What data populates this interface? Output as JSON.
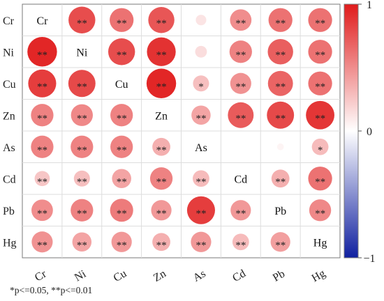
{
  "chart_data": {
    "type": "heatmap",
    "title": "",
    "variables": [
      "Cr",
      "Ni",
      "Cu",
      "Zn",
      "As",
      "Cd",
      "Pb",
      "Hg"
    ],
    "matrix": [
      [
        1.0,
        0.78,
        0.62,
        0.74,
        0.12,
        0.5,
        0.62,
        0.62
      ],
      [
        0.95,
        1.0,
        0.78,
        0.9,
        0.15,
        0.55,
        0.7,
        0.62
      ],
      [
        0.85,
        0.8,
        1.0,
        0.95,
        0.28,
        0.48,
        0.68,
        0.62
      ],
      [
        0.55,
        0.52,
        0.55,
        1.0,
        0.4,
        0.72,
        0.8,
        0.88
      ],
      [
        0.55,
        0.55,
        0.55,
        0.35,
        1.0,
        0.0,
        0.05,
        0.3
      ],
      [
        0.25,
        0.28,
        0.4,
        0.55,
        0.3,
        1.0,
        0.35,
        0.62
      ],
      [
        0.5,
        0.55,
        0.58,
        0.45,
        0.85,
        0.45,
        1.0,
        0.52
      ],
      [
        0.48,
        0.4,
        0.45,
        0.35,
        0.45,
        0.3,
        0.42,
        1.0
      ]
    ],
    "significance": [
      [
        "",
        "**",
        "**",
        "**",
        "",
        "**",
        "**",
        "**"
      ],
      [
        "**",
        "",
        "**",
        "**",
        "",
        "**",
        "**",
        "**"
      ],
      [
        "**",
        "**",
        "",
        "**",
        "*",
        "**",
        "**",
        "**"
      ],
      [
        "**",
        "**",
        "**",
        "",
        "**",
        "**",
        "**",
        "**"
      ],
      [
        "**",
        "**",
        "**",
        "**",
        "",
        "",
        "",
        "*"
      ],
      [
        "**",
        "**",
        "**",
        "**",
        "**",
        "",
        "**",
        "**"
      ],
      [
        "**",
        "**",
        "**",
        "**",
        "**",
        "**",
        "",
        "**"
      ],
      [
        "**",
        "**",
        "**",
        "**",
        "**",
        "**",
        "**",
        ""
      ]
    ],
    "colorbar": {
      "range": [
        -1,
        1
      ],
      "tick_labels": [
        "1",
        "0",
        "−1"
      ],
      "colors": {
        "positive": "#e01b1b",
        "neutral": "#ffffff",
        "negative": "#1020a0"
      }
    },
    "legend_note": "*p<=0.05, **p<=0.01",
    "grid": true
  }
}
